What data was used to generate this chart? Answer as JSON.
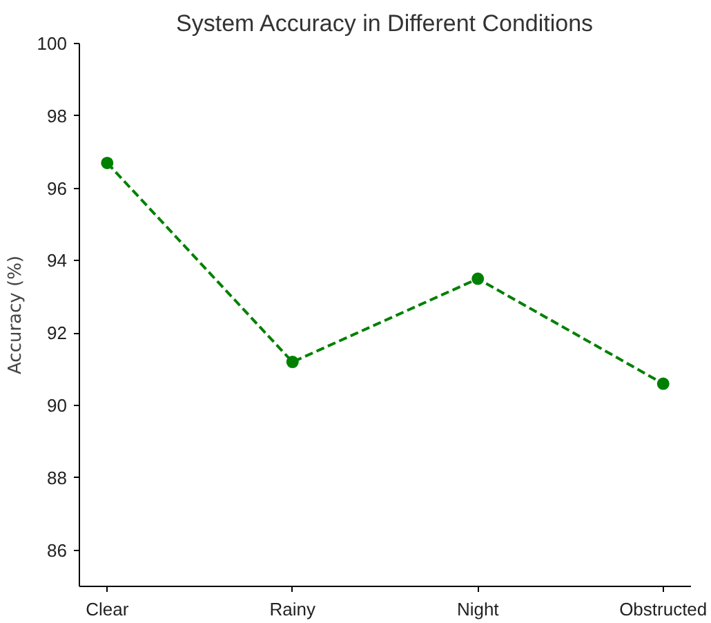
{
  "chart_data": {
    "type": "line",
    "title": "System Accuracy in Different Conditions",
    "ylabel": "Accuracy (%)",
    "categories": [
      "Clear",
      "Rainy",
      "Night",
      "Obstructed"
    ],
    "series": [
      {
        "color": "#008000",
        "values": [
          96.7,
          91.2,
          93.5,
          90.6
        ]
      }
    ],
    "ylim": [
      85,
      100
    ],
    "yticks": [
      86,
      88,
      90,
      92,
      94,
      96,
      98,
      100
    ],
    "marker": "circle",
    "line_style": "dashed",
    "grid": false
  }
}
